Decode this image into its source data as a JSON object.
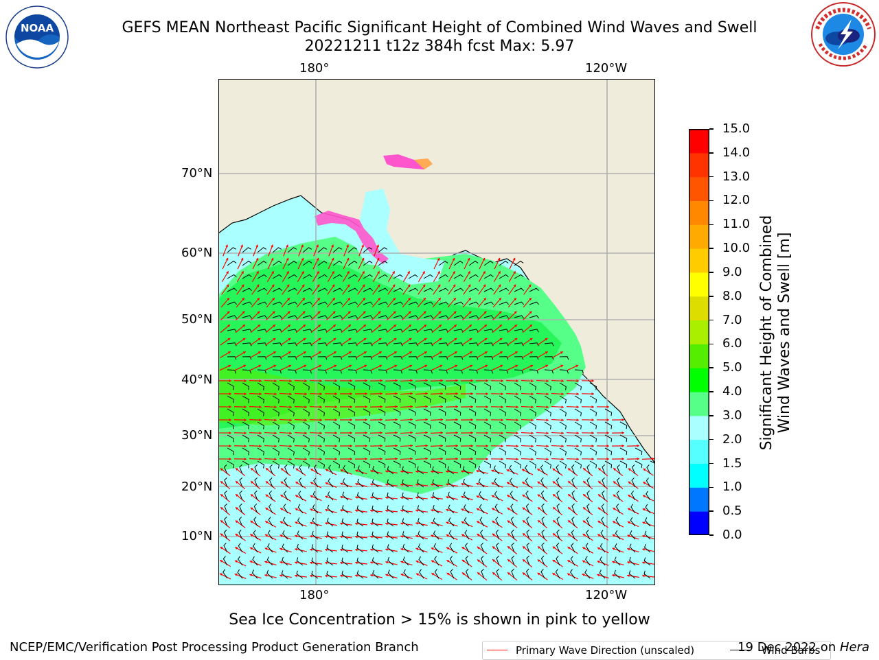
{
  "header": {
    "title_line1": "GEFS MEAN Northeast Pacific Significant Height of Combined Wind Waves and Swell",
    "title_line2": "20221211 t12z 384h fcst   Max: 5.97"
  },
  "logos": {
    "left": {
      "text": "NOAA",
      "ring_text": "NATIONAL OCEANIC AND ATMOSPHERIC ADMINISTRATION · U.S. DEPARTMENT OF COMMERCE"
    },
    "right": {
      "ring_text": "NATIONAL WEATHER SERVICE"
    }
  },
  "map": {
    "lon_labels_top": [
      "180°",
      "120°W"
    ],
    "lon_labels_bottom": [
      "180°",
      "120°W"
    ],
    "lat_labels": [
      "70°N",
      "60°N",
      "50°N",
      "40°N",
      "30°N",
      "20°N",
      "10°N"
    ],
    "legend": {
      "wave_label": "Primary Wave Direction (unscaled)",
      "wind_label": "Wind Barbs",
      "wave_color": "#ff0000",
      "wind_color": "#000000"
    },
    "colors": {
      "land": "#efecdc",
      "ice_pink": "#ff55cc",
      "ice_orange": "#ffaa55"
    }
  },
  "colorbar": {
    "label_line1": "Significant Height of Combined",
    "label_line2": "Wind Waves and Swell [m]",
    "ticks": [
      "0.0",
      "0.5",
      "1.0",
      "1.5",
      "2.0",
      "3.0",
      "4.0",
      "5.0",
      "6.0",
      "7.0",
      "8.0",
      "9.0",
      "10.0",
      "11.0",
      "12.0",
      "13.0",
      "14.0",
      "15.0"
    ],
    "colors": [
      "#0000ff",
      "#0077ff",
      "#00ffff",
      "#55ffff",
      "#aaffff",
      "#55ff88",
      "#00ff00",
      "#55ee00",
      "#aaee00",
      "#dddd00",
      "#ffff00",
      "#ffcc00",
      "#ffaa00",
      "#ff8800",
      "#ff5500",
      "#ff3300",
      "#ff0000"
    ]
  },
  "footer": {
    "note": "Sea Ice Concentration > 15% is shown in pink to yellow",
    "credit": "NCEP/EMC/Verification Post Processing Product Generation Branch",
    "date_prefix": "19 Dec 2022 on ",
    "date_machine": "Hera"
  }
}
